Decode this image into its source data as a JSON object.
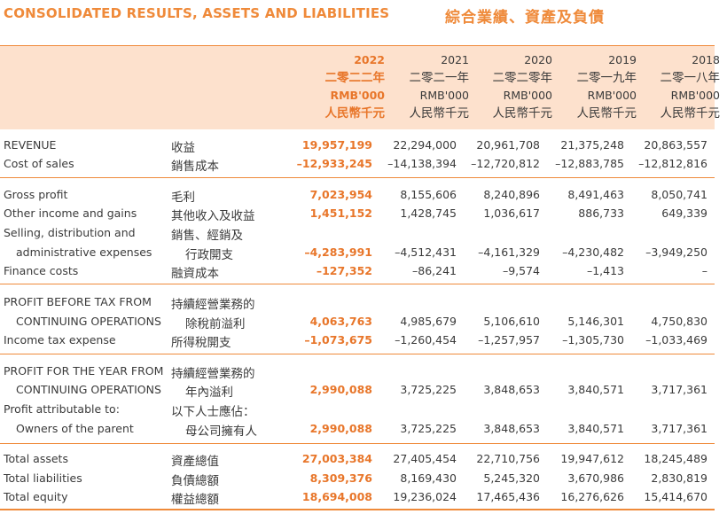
{
  "title_en": "CONSOLIDATED RESULTS, ASSETS AND LIABILITIES",
  "title_zh": "綜合業績、資產及負債",
  "columns": [
    {
      "year": "2022",
      "year_zh": "二零二二年",
      "unit": "RMB'000",
      "unit_zh": "人民幣千元"
    },
    {
      "year": "2021",
      "year_zh": "二零二一年",
      "unit": "RMB'000",
      "unit_zh": "人民幣千元"
    },
    {
      "year": "2020",
      "year_zh": "二零二零年",
      "unit": "RMB'000",
      "unit_zh": "人民幣千元"
    },
    {
      "year": "2019",
      "year_zh": "二零一九年",
      "unit": "RMB'000",
      "unit_zh": "人民幣千元"
    },
    {
      "year": "2018",
      "year_zh": "二零一八年",
      "unit": "RMB'000",
      "unit_zh": "人民幣千元"
    }
  ],
  "rows": [
    {
      "en": "REVENUE",
      "zh": "收益",
      "values": [
        "19,957,199",
        "22,294,000",
        "20,961,708",
        "21,375,248",
        "20,863,557"
      ]
    },
    {
      "en": "Cost of sales",
      "zh": "銷售成本",
      "values": [
        "–12,933,245",
        "–14,138,394",
        "–12,720,812",
        "–12,883,785",
        "–12,812,816"
      ]
    },
    {
      "en": "Gross profit",
      "zh": "毛利",
      "values": [
        "7,023,954",
        "8,155,606",
        "8,240,896",
        "8,491,463",
        "8,050,741"
      ]
    },
    {
      "en": "Other income and gains",
      "zh": "其他收入及收益",
      "values": [
        "1,451,152",
        "1,428,745",
        "1,036,617",
        "886,733",
        "649,339"
      ]
    },
    {
      "en": "Selling, distribution and",
      "zh": "銷售、經銷及",
      "values": [
        "",
        "",
        "",
        "",
        ""
      ]
    },
    {
      "en": "administrative expenses",
      "zh": "行政開支",
      "values": [
        "–4,283,991",
        "–4,512,431",
        "–4,161,329",
        "–4,230,482",
        "–3,949,250"
      ]
    },
    {
      "en": "Finance costs",
      "zh": "融資成本",
      "values": [
        "–127,352",
        "–86,241",
        "–9,574",
        "–1,413",
        "–"
      ]
    },
    {
      "en": "PROFIT BEFORE TAX FROM",
      "zh": "持續經營業務的",
      "values": [
        "",
        "",
        "",
        "",
        ""
      ]
    },
    {
      "en": "CONTINUING OPERATIONS",
      "zh": "除稅前溢利",
      "values": [
        "4,063,763",
        "4,985,679",
        "5,106,610",
        "5,146,301",
        "4,750,830"
      ]
    },
    {
      "en": "Income tax expense",
      "zh": "所得稅開支",
      "values": [
        "–1,073,675",
        "–1,260,454",
        "–1,257,957",
        "–1,305,730",
        "–1,033,469"
      ]
    },
    {
      "en": "PROFIT FOR THE YEAR FROM",
      "zh": "持續經營業務的",
      "values": [
        "",
        "",
        "",
        "",
        ""
      ]
    },
    {
      "en": "CONTINUING OPERATIONS",
      "zh": "年內溢利",
      "values": [
        "2,990,088",
        "3,725,225",
        "3,848,653",
        "3,840,571",
        "3,717,361"
      ]
    },
    {
      "en": "Profit attributable to:",
      "zh": "以下人士應佔：",
      "values": [
        "",
        "",
        "",
        "",
        ""
      ]
    },
    {
      "en": "Owners of the parent",
      "zh": "母公司擁有人",
      "values": [
        "2,990,088",
        "3,725,225",
        "3,848,653",
        "3,840,571",
        "3,717,361"
      ]
    },
    {
      "en": "Total assets",
      "zh": "資產總值",
      "values": [
        "27,003,384",
        "27,405,454",
        "22,710,756",
        "19,947,612",
        "18,245,489"
      ]
    },
    {
      "en": "Total liabilities",
      "zh": "負債總額",
      "values": [
        "8,309,376",
        "8,169,430",
        "5,245,320",
        "3,670,986",
        "2,830,819"
      ]
    },
    {
      "en": "Total equity",
      "zh": "權益總額",
      "values": [
        "18,694,008",
        "19,236,024",
        "17,465,436",
        "16,276,626",
        "15,414,670"
      ]
    }
  ]
}
